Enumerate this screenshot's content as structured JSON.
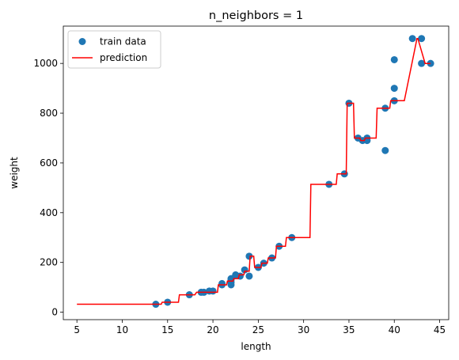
{
  "chart_data": {
    "type": "scatter",
    "title": "n_neighbors = 1",
    "xlabel": "length",
    "ylabel": "weight",
    "xlim": [
      3.5,
      46
    ],
    "ylim": [
      -30,
      1150
    ],
    "xticks": [
      5,
      10,
      15,
      20,
      25,
      30,
      35,
      40,
      45
    ],
    "yticks": [
      0,
      200,
      400,
      600,
      800,
      1000
    ],
    "legend": {
      "placement": "top-left",
      "entries": [
        "train data",
        "prediction"
      ]
    },
    "colors": {
      "scatter": "#1f77b4",
      "line": "#ff0000"
    },
    "series": [
      {
        "name": "train data",
        "kind": "scatter",
        "x": [
          13.7,
          15.0,
          17.4,
          18.7,
          19.0,
          19.6,
          20.0,
          21.0,
          21.0,
          22.0,
          22.0,
          22.0,
          22.0,
          22.5,
          23.0,
          23.5,
          24.0,
          24.0,
          25.0,
          25.6,
          26.5,
          27.3,
          28.7,
          32.8,
          34.5,
          35.0,
          36.0,
          36.5,
          37.0,
          37.0,
          39.0,
          39.0,
          40.0,
          40.0,
          40.0,
          42.0,
          43.0,
          43.0,
          44.0
        ],
        "y": [
          32,
          40,
          70,
          80,
          80,
          85,
          85,
          110,
          115,
          110,
          120,
          130,
          135,
          150,
          145,
          170,
          145,
          225,
          180,
          197,
          218,
          265,
          300,
          514,
          556,
          840,
          700,
          690,
          690,
          700,
          650,
          820,
          850,
          900,
          1015,
          1100,
          1000,
          1100,
          1000
        ]
      },
      {
        "name": "prediction",
        "kind": "line",
        "x": [
          5,
          14.3,
          14.4,
          16.2,
          16.3,
          18.0,
          18.2,
          20.5,
          20.6,
          21.5,
          21.6,
          22.2,
          22.3,
          22.8,
          22.9,
          23.4,
          23.5,
          24.0,
          24.1,
          24.5,
          24.6,
          25.3,
          25.4,
          26.0,
          26.1,
          26.9,
          27.0,
          28.0,
          28.1,
          29.7,
          29.8,
          30.7,
          30.8,
          33.6,
          33.7,
          34.7,
          34.8,
          35.5,
          35.6,
          36.2,
          36.3,
          36.7,
          36.8,
          38.0,
          38.1,
          39.5,
          39.6,
          41.0,
          41.1,
          42.5,
          42.6,
          43.4,
          43.5,
          44.0
        ],
        "y": [
          32,
          32,
          40,
          40,
          70,
          70,
          80,
          80,
          110,
          110,
          125,
          125,
          135,
          135,
          150,
          150,
          165,
          165,
          225,
          225,
          180,
          180,
          197,
          197,
          218,
          218,
          265,
          265,
          300,
          300,
          300,
          300,
          514,
          514,
          556,
          556,
          840,
          840,
          700,
          700,
          690,
          690,
          700,
          700,
          820,
          820,
          850,
          850,
          850,
          1100,
          1100,
          1000,
          1000,
          1000
        ]
      }
    ]
  }
}
